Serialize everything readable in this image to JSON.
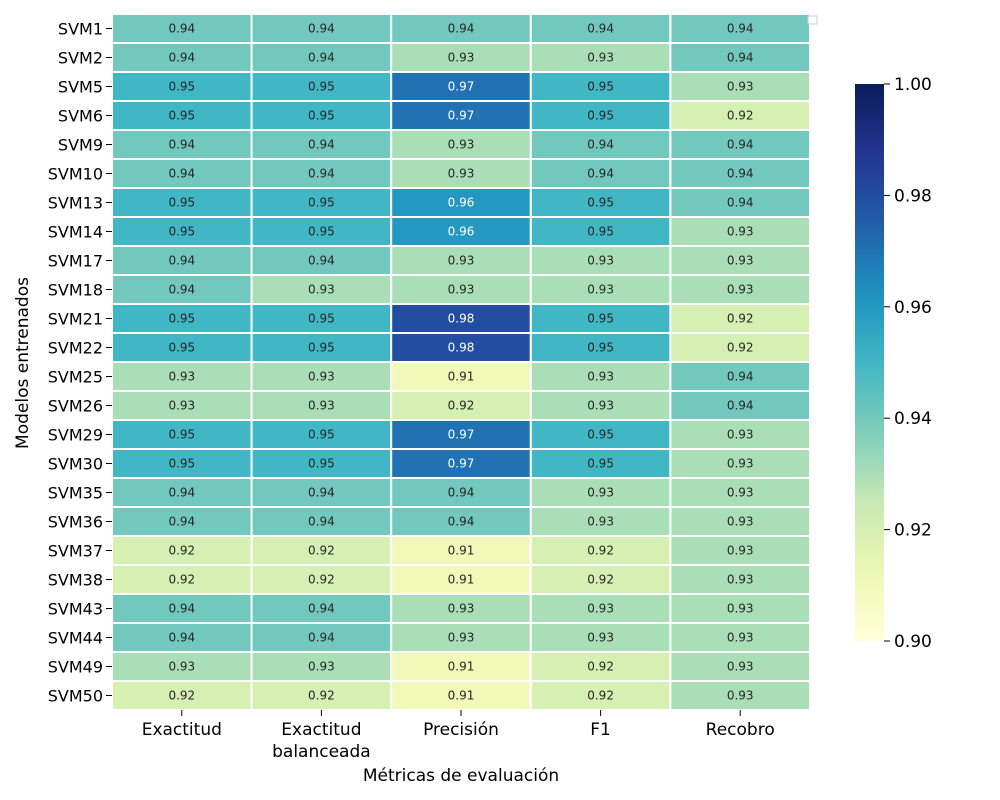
{
  "chart_data": {
    "type": "heatmap",
    "title": "",
    "xlabel": "Métricas de evaluación",
    "ylabel": "Modelos entrenados",
    "columns": [
      "Exactitud",
      "Exactitud\nbalanceada",
      "Precisión",
      "F1",
      "Recobro"
    ],
    "rows": [
      "SVM1",
      "SVM2",
      "SVM5",
      "SVM6",
      "SVM9",
      "SVM10",
      "SVM13",
      "SVM14",
      "SVM17",
      "SVM18",
      "SVM21",
      "SVM22",
      "SVM25",
      "SVM26",
      "SVM29",
      "SVM30",
      "SVM35",
      "SVM36",
      "SVM37",
      "SVM38",
      "SVM43",
      "SVM44",
      "SVM49",
      "SVM50"
    ],
    "values": [
      [
        0.94,
        0.94,
        0.94,
        0.94,
        0.94
      ],
      [
        0.94,
        0.94,
        0.93,
        0.93,
        0.94
      ],
      [
        0.95,
        0.95,
        0.97,
        0.95,
        0.93
      ],
      [
        0.95,
        0.95,
        0.97,
        0.95,
        0.92
      ],
      [
        0.94,
        0.94,
        0.93,
        0.94,
        0.94
      ],
      [
        0.94,
        0.94,
        0.93,
        0.94,
        0.94
      ],
      [
        0.95,
        0.95,
        0.96,
        0.95,
        0.94
      ],
      [
        0.95,
        0.95,
        0.96,
        0.95,
        0.93
      ],
      [
        0.94,
        0.94,
        0.93,
        0.93,
        0.93
      ],
      [
        0.94,
        0.93,
        0.93,
        0.93,
        0.93
      ],
      [
        0.95,
        0.95,
        0.98,
        0.95,
        0.92
      ],
      [
        0.95,
        0.95,
        0.98,
        0.95,
        0.92
      ],
      [
        0.93,
        0.93,
        0.91,
        0.93,
        0.94
      ],
      [
        0.93,
        0.93,
        0.92,
        0.93,
        0.94
      ],
      [
        0.95,
        0.95,
        0.97,
        0.95,
        0.93
      ],
      [
        0.95,
        0.95,
        0.97,
        0.95,
        0.93
      ],
      [
        0.94,
        0.94,
        0.94,
        0.93,
        0.93
      ],
      [
        0.94,
        0.94,
        0.94,
        0.93,
        0.93
      ],
      [
        0.92,
        0.92,
        0.91,
        0.92,
        0.93
      ],
      [
        0.92,
        0.92,
        0.91,
        0.92,
        0.93
      ],
      [
        0.94,
        0.94,
        0.93,
        0.93,
        0.93
      ],
      [
        0.94,
        0.94,
        0.93,
        0.93,
        0.93
      ],
      [
        0.93,
        0.93,
        0.91,
        0.92,
        0.93
      ],
      [
        0.92,
        0.92,
        0.91,
        0.92,
        0.93
      ]
    ],
    "colormap": "YlGnBu",
    "vmin": 0.9,
    "vmax": 1.0,
    "colorbar_ticks": [
      "0.90",
      "0.92",
      "0.94",
      "0.96",
      "0.98",
      "1.00"
    ],
    "grid": true,
    "legend": "top-right, empty"
  }
}
